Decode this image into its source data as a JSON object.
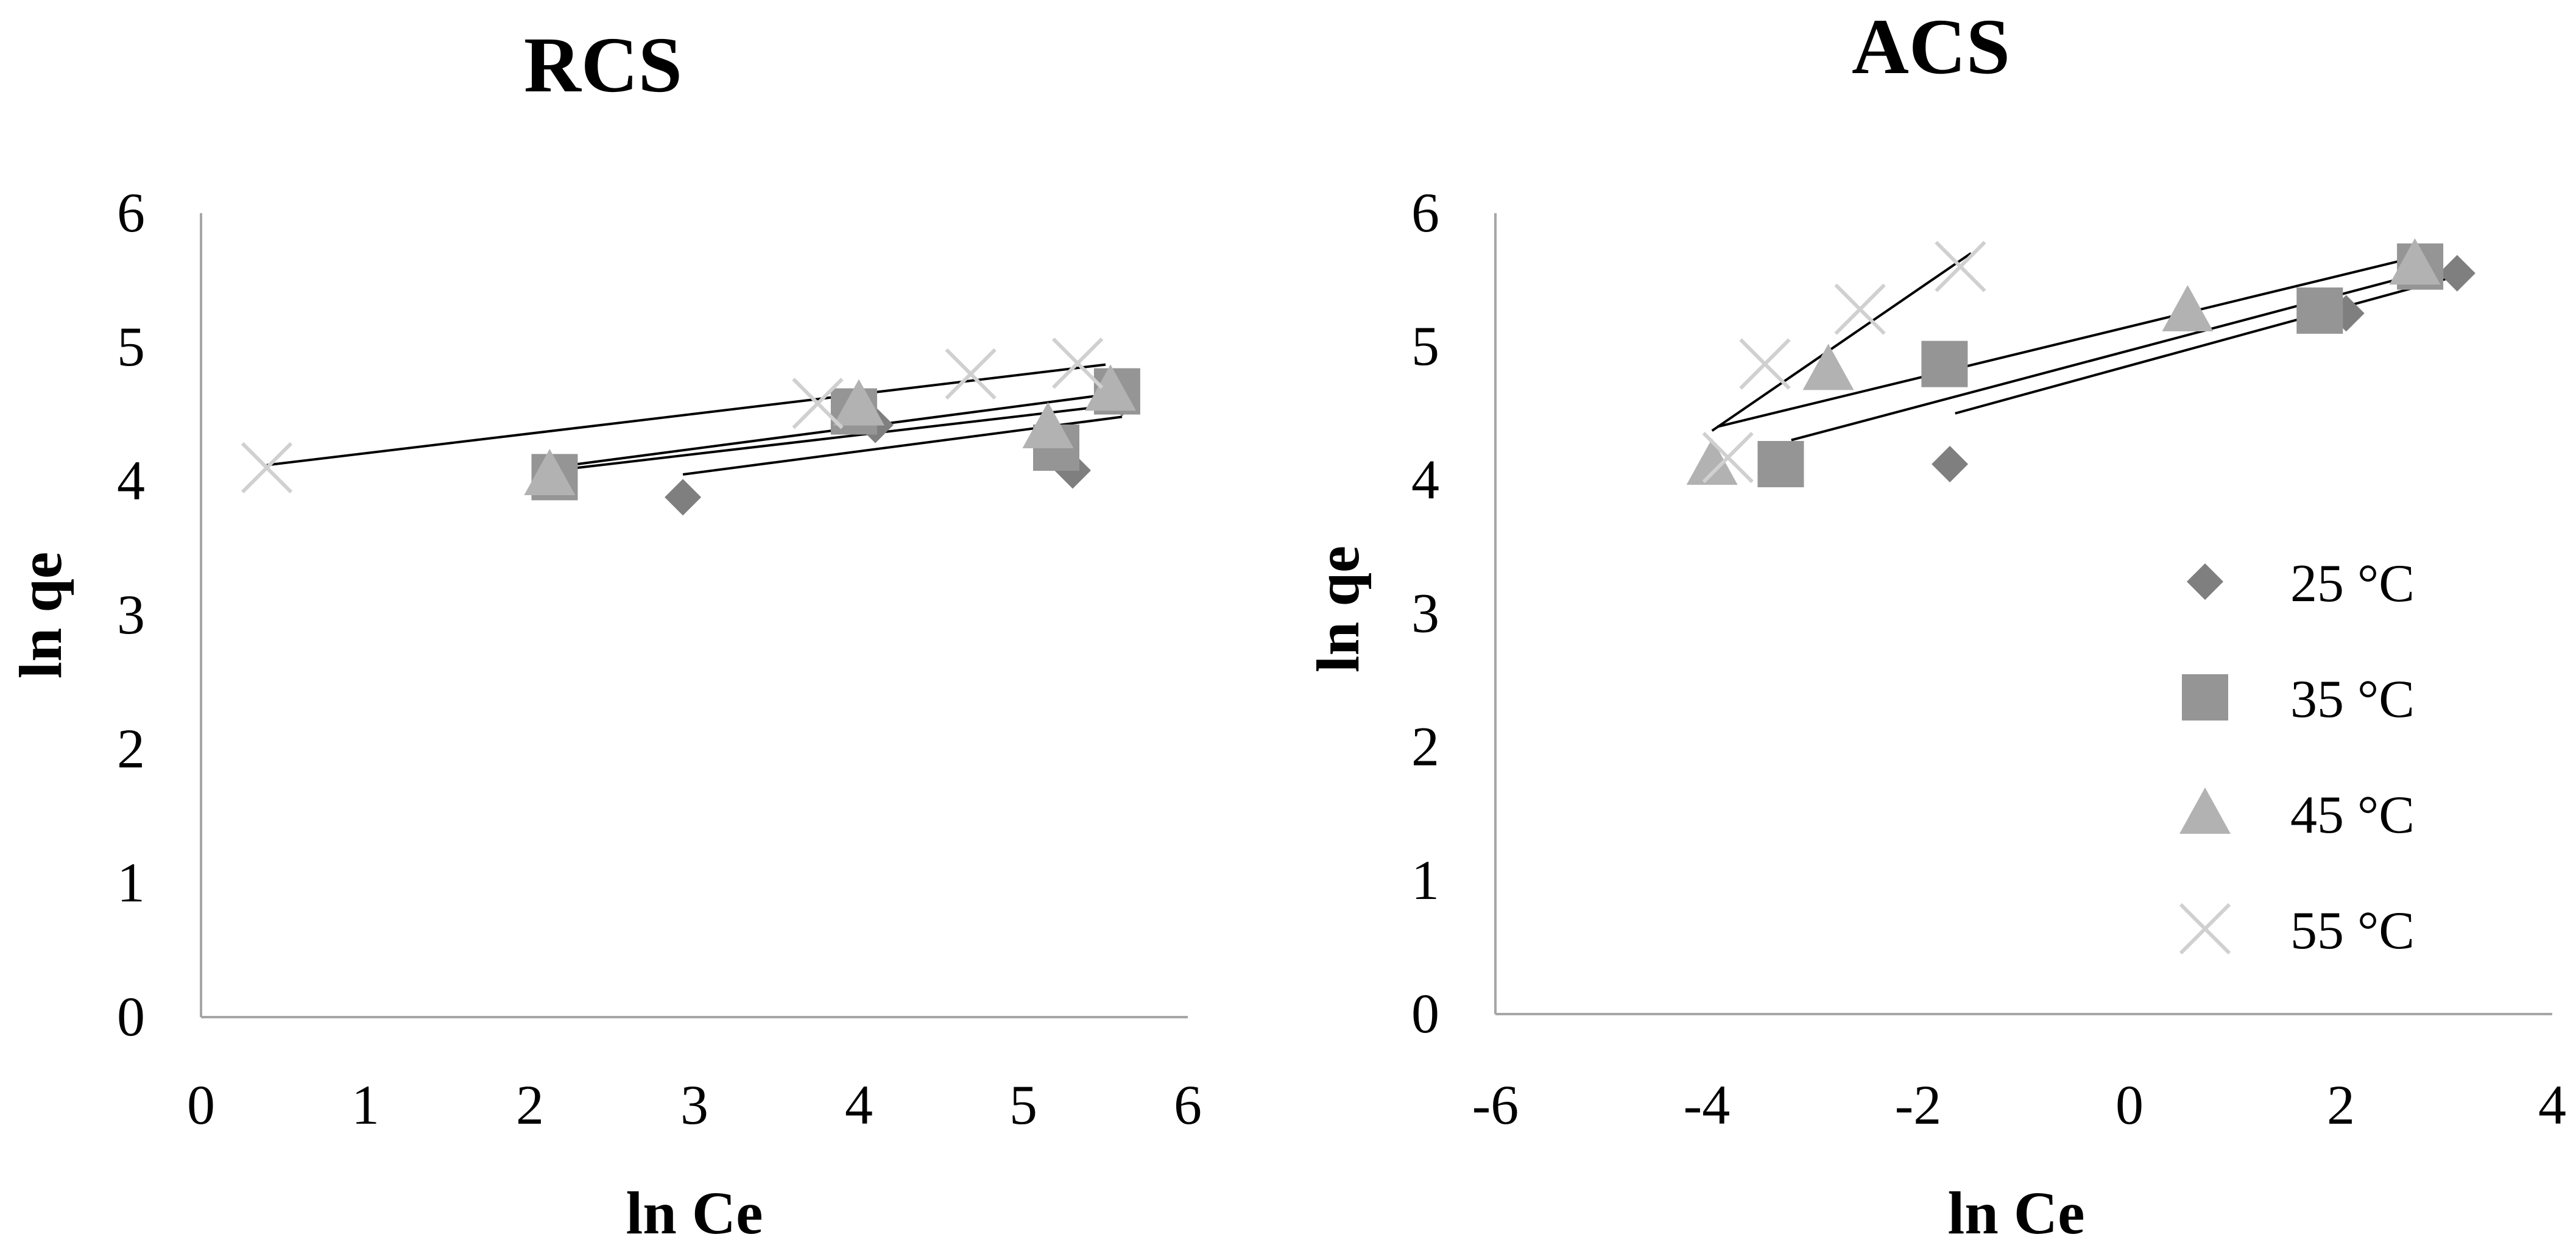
{
  "colors": {
    "s25": "#7f7f7f",
    "s35": "#959595",
    "s45": "#b2b2b2",
    "s55": "#d0d0d0",
    "fit_line": "#000000",
    "axis": "#a6a6a6"
  },
  "chart_data": [
    {
      "type": "scatter",
      "title": "RCS",
      "xlabel": "ln Ce",
      "ylabel": "ln qe",
      "xlim": [
        0,
        6
      ],
      "ylim": [
        0,
        6
      ],
      "xticks": [
        "0",
        "1",
        "2",
        "3",
        "4",
        "5",
        "6"
      ],
      "yticks": [
        "0",
        "1",
        "2",
        "3",
        "4",
        "5",
        "6"
      ],
      "grid": false,
      "series": [
        {
          "name": "25 °C",
          "marker": "diamond",
          "color_key": "s25",
          "x": [
            2.93,
            4.1,
            5.3,
            5.6
          ],
          "y": [
            3.88,
            4.42,
            4.08,
            4.62
          ],
          "fit": {
            "x": [
              2.93,
              5.6
            ],
            "y": [
              4.05,
              4.48
            ]
          }
        },
        {
          "name": "35 °C",
          "marker": "square",
          "color_key": "s35",
          "x": [
            2.15,
            3.97,
            5.2,
            5.57
          ],
          "y": [
            4.03,
            4.52,
            4.25,
            4.67
          ],
          "fit": {
            "x": [
              2.15,
              5.57
            ],
            "y": [
              4.08,
              4.57
            ]
          }
        },
        {
          "name": "45 °C",
          "marker": "triangle",
          "color_key": "s45",
          "x": [
            2.12,
            4.0,
            5.15,
            5.53
          ],
          "y": [
            4.05,
            4.57,
            4.4,
            4.68
          ],
          "fit": {
            "x": [
              2.12,
              5.53
            ],
            "y": [
              4.1,
              4.65
            ]
          }
        },
        {
          "name": "55 °C",
          "marker": "cross",
          "color_key": "s55",
          "x": [
            0.4,
            3.75,
            4.68,
            5.33
          ],
          "y": [
            4.1,
            4.58,
            4.8,
            4.88
          ],
          "fit": {
            "x": [
              0.4,
              5.5
            ],
            "y": [
              4.12,
              4.87
            ]
          }
        }
      ]
    },
    {
      "type": "scatter",
      "title": "ACS",
      "xlabel": "ln Ce",
      "ylabel": "ln qe",
      "xlim": [
        -6,
        4
      ],
      "ylim": [
        0,
        6
      ],
      "xticks": [
        "-6",
        "-4",
        "-2",
        "0",
        "2",
        "4"
      ],
      "yticks": [
        "0",
        "1",
        "2",
        "3",
        "4",
        "5",
        "6"
      ],
      "grid": false,
      "legend_position": "right",
      "series": [
        {
          "name": "25 °C",
          "marker": "diamond",
          "color_key": "s25",
          "x": [
            -1.7,
            2.05,
            3.1
          ],
          "y": [
            4.12,
            5.25,
            5.55
          ],
          "fit": {
            "x": [
              -1.65,
              3.1
            ],
            "y": [
              4.5,
              5.53
            ]
          }
        },
        {
          "name": "35 °C",
          "marker": "square",
          "color_key": "s35",
          "x": [
            -3.3,
            -1.75,
            1.8,
            2.75
          ],
          "y": [
            4.12,
            4.87,
            5.27,
            5.6
          ],
          "fit": {
            "x": [
              -3.2,
              2.85
            ],
            "y": [
              4.3,
              5.57
            ]
          }
        },
        {
          "name": "45 °C",
          "marker": "triangle",
          "color_key": "s45",
          "x": [
            -3.95,
            -2.85,
            0.55,
            2.7
          ],
          "y": [
            4.12,
            4.83,
            5.27,
            5.62
          ],
          "fit": {
            "x": [
              -3.9,
              2.6
            ],
            "y": [
              4.4,
              5.65
            ]
          }
        },
        {
          "name": "55 °C",
          "marker": "cross",
          "color_key": "s55",
          "x": [
            -3.8,
            -3.45,
            -2.55,
            -1.6
          ],
          "y": [
            4.17,
            4.87,
            5.28,
            5.6
          ],
          "fit": {
            "x": [
              -3.95,
              -1.5
            ],
            "y": [
              4.37,
              5.7
            ]
          }
        }
      ]
    }
  ]
}
